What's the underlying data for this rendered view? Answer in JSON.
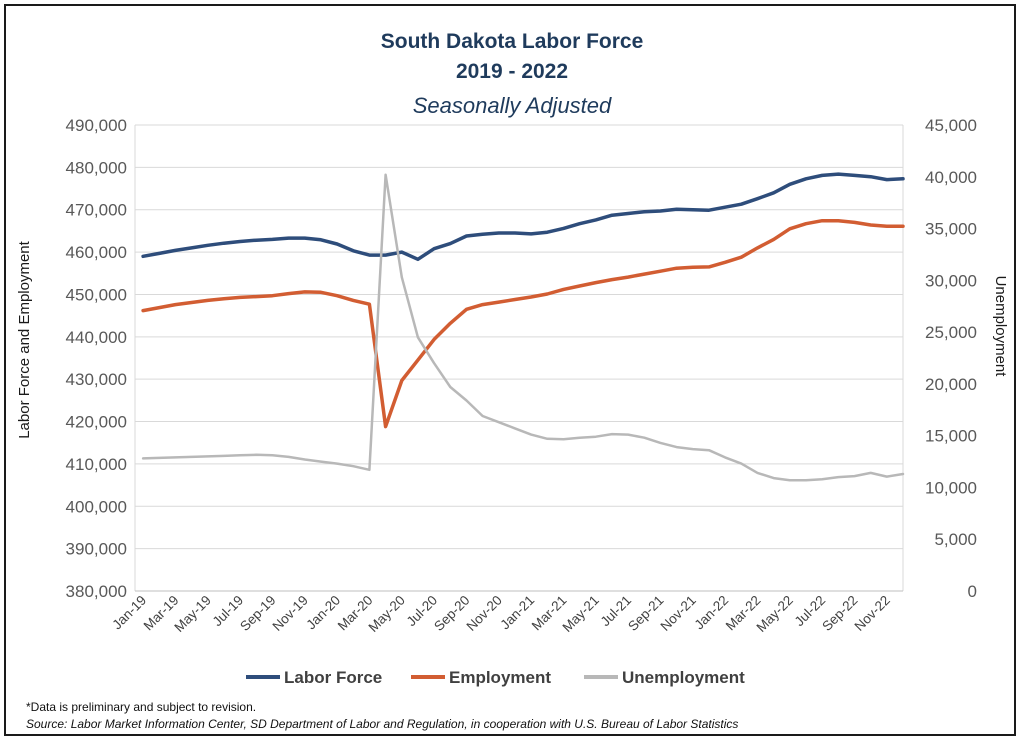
{
  "chart_data": {
    "type": "line",
    "title": "South Dakota Labor Force",
    "title_line2": "2019 - 2022",
    "subtitle": "Seasonally Adjusted",
    "ylabel_left": "Labor  Force and Employment",
    "ylabel_right": "Unemployment",
    "ylim_left": [
      380000,
      490000
    ],
    "ylim_right": [
      0,
      45000
    ],
    "yticks_left": [
      "380,000",
      "390,000",
      "400,000",
      "410,000",
      "420,000",
      "430,000",
      "440,000",
      "450,000",
      "460,000",
      "470,000",
      "480,000",
      "490,000"
    ],
    "yticks_right": [
      "0",
      "5,000",
      "10,000",
      "15,000",
      "20,000",
      "25,000",
      "30,000",
      "35,000",
      "40,000",
      "45,000"
    ],
    "x_tick_labels": [
      "Jan-19",
      "Mar-19",
      "May-19",
      "Jul-19",
      "Sep-19",
      "Nov-19",
      "Jan-20",
      "Mar-20",
      "May-20",
      "Jul-20",
      "Sep-20",
      "Nov-20",
      "Jan-21",
      "Mar-21",
      "May-21",
      "Jul-21",
      "Sep-21",
      "Nov-21",
      "Jan-22",
      "Mar-22",
      "May-22",
      "Jul-22",
      "Sep-22",
      "Nov-22"
    ],
    "x": [
      "Jan-19",
      "Feb-19",
      "Mar-19",
      "Apr-19",
      "May-19",
      "Jun-19",
      "Jul-19",
      "Aug-19",
      "Sep-19",
      "Oct-19",
      "Nov-19",
      "Dec-19",
      "Jan-20",
      "Feb-20",
      "Mar-20",
      "Apr-20",
      "May-20",
      "Jun-20",
      "Jul-20",
      "Aug-20",
      "Sep-20",
      "Oct-20",
      "Nov-20",
      "Dec-20",
      "Jan-21",
      "Feb-21",
      "Mar-21",
      "Apr-21",
      "May-21",
      "Jun-21",
      "Jul-21",
      "Aug-21",
      "Sep-21",
      "Oct-21",
      "Nov-21",
      "Dec-21",
      "Jan-22",
      "Feb-22",
      "Mar-22",
      "Apr-22",
      "May-22",
      "Jun-22",
      "Jul-22",
      "Aug-22",
      "Sep-22",
      "Oct-22",
      "Nov-22",
      "Dec-22"
    ],
    "grid": "horizontal",
    "legend_position": "bottom",
    "series": [
      {
        "name": "Labor Force",
        "axis": "left",
        "color": "#2e4d7b",
        "values": [
          459000,
          459700,
          460400,
          461000,
          461600,
          462100,
          462500,
          462800,
          463000,
          463300,
          463300,
          462900,
          461900,
          460300,
          459300,
          459300,
          460000,
          458300,
          460800,
          462000,
          463800,
          464200,
          464500,
          464500,
          464300,
          464700,
          465600,
          466700,
          467600,
          468700,
          469100,
          469500,
          469700,
          470100,
          470000,
          469900,
          470600,
          471300,
          472600,
          474000,
          476000,
          477300,
          478100,
          478400,
          478100,
          477800,
          477100,
          477300
        ]
      },
      {
        "name": "Employment",
        "axis": "left",
        "color": "#d25d32",
        "values": [
          446200,
          446900,
          447600,
          448100,
          448600,
          449000,
          449300,
          449500,
          449700,
          450200,
          450600,
          450500,
          449700,
          448600,
          447700,
          418800,
          429700,
          434500,
          439400,
          443200,
          446500,
          447600,
          448200,
          448800,
          449400,
          450100,
          451200,
          452000,
          452800,
          453500,
          454100,
          454800,
          455500,
          456200,
          456400,
          456500,
          457600,
          458800,
          461000,
          463000,
          465500,
          466700,
          467400,
          467400,
          467000,
          466400,
          466100,
          466100
        ]
      },
      {
        "name": "Unemployment",
        "axis": "right",
        "color": "#b8b8b8",
        "values": [
          12800,
          12850,
          12900,
          12950,
          13000,
          13050,
          13100,
          13150,
          13100,
          12950,
          12700,
          12500,
          12300,
          12050,
          11700,
          40200,
          30300,
          24500,
          22000,
          19700,
          18400,
          16900,
          16300,
          15700,
          15100,
          14700,
          14650,
          14800,
          14900,
          15150,
          15100,
          14800,
          14300,
          13900,
          13700,
          13600,
          12900,
          12300,
          11400,
          10900,
          10700,
          10700,
          10800,
          11000,
          11100,
          11400,
          11050,
          11300
        ]
      }
    ]
  },
  "footer": {
    "note": "*Data is preliminary and subject to revision.",
    "source": "Source: Labor Market Information Center, SD Department of Labor and Regulation, in cooperation with U.S. Bureau of Labor Statistics"
  }
}
